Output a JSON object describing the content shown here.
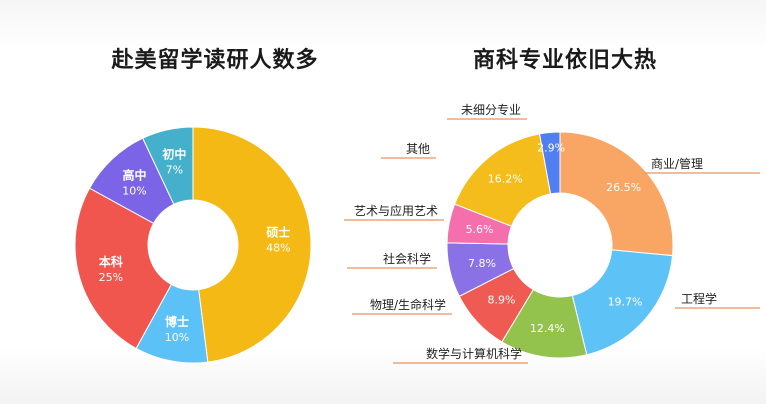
{
  "chart_data": [
    {
      "type": "pie",
      "title": "赴美留学读研人数多",
      "slices": [
        {
          "name": "硕士",
          "value": 48,
          "label": "48%",
          "color": "#f5b915"
        },
        {
          "name": "博士",
          "value": 10,
          "label": "10%",
          "color": "#5bc1f6"
        },
        {
          "name": "本科",
          "value": 25,
          "label": "25%",
          "color": "#f0564d"
        },
        {
          "name": "高中",
          "value": 10,
          "label": "10%",
          "color": "#7b64e6"
        },
        {
          "name": "初中",
          "value": 7,
          "label": "7%",
          "color": "#45b0cc"
        }
      ]
    },
    {
      "type": "pie",
      "title": "商科专业依旧大热",
      "slices": [
        {
          "name": "商业/管理",
          "value": 26.5,
          "label": "26.5%",
          "color": "#f9a664"
        },
        {
          "name": "工程学",
          "value": 19.7,
          "label": "19.7%",
          "color": "#5dc3f7"
        },
        {
          "name": "数学与计算机科学",
          "value": 12.4,
          "label": "12.4%",
          "color": "#94c34d"
        },
        {
          "name": "物理/生命科学",
          "value": 8.9,
          "label": "8.9%",
          "color": "#ef5b52"
        },
        {
          "name": "社会科学",
          "value": 7.8,
          "label": "7.8%",
          "color": "#8a72e6"
        },
        {
          "name": "艺术与应用艺术",
          "value": 5.6,
          "label": "5.6%",
          "color": "#f56fad"
        },
        {
          "name": "其他",
          "value": 16.2,
          "label": "16.2%",
          "color": "#f5bd1b"
        },
        {
          "name": "未细分专业",
          "value": 2.9,
          "label": "2.9%",
          "color": "#4f7ff0"
        }
      ]
    }
  ]
}
